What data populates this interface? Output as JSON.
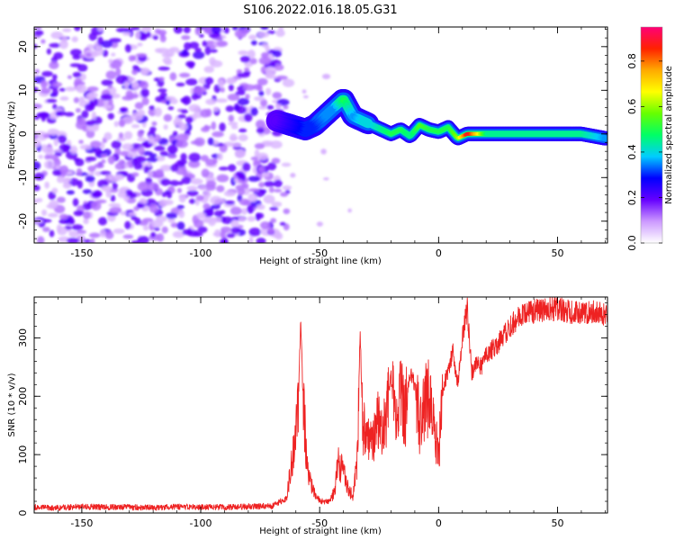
{
  "title": "S106.2022.016.18.05.G31",
  "chart_data": [
    {
      "type": "heatmap",
      "xlabel": "Height of straight line (km)",
      "ylabel": "Frequency (Hz)",
      "xlim": [
        -170,
        71
      ],
      "ylim": [
        -25,
        24.5
      ],
      "x_ticks": [
        -150,
        -100,
        -50,
        0,
        50
      ],
      "y_ticks": [
        -20,
        -10,
        0,
        10,
        20
      ],
      "colorbar": {
        "label": "Normalized spectral amplitude",
        "range": [
          0,
          0.95
        ],
        "ticks": [
          0.0,
          0.2,
          0.4,
          0.6,
          0.8
        ]
      },
      "noise_region": {
        "x_range": [
          -170,
          -68
        ],
        "y_range": [
          -25,
          24.5
        ],
        "typical_amplitude": 0.15
      },
      "signal_ridge": {
        "x": [
          -68,
          -62,
          -56,
          -52,
          -48,
          -44,
          -40,
          -36,
          -32,
          -28,
          -24,
          -20,
          -16,
          -12,
          -8,
          -4,
          0,
          4,
          8,
          12,
          16,
          20,
          30,
          40,
          50,
          60,
          70
        ],
        "frequency": [
          3,
          2,
          1,
          2,
          4,
          6,
          8,
          4,
          3,
          2,
          1,
          0,
          1,
          -0.5,
          2,
          1,
          0.5,
          1.5,
          -1,
          0,
          0,
          0,
          0,
          0,
          0,
          0,
          -1
        ],
        "amplitude": [
          0.2,
          0.25,
          0.3,
          0.3,
          0.35,
          0.35,
          0.5,
          0.35,
          0.4,
          0.4,
          0.45,
          0.5,
          0.5,
          0.45,
          0.55,
          0.5,
          0.5,
          0.5,
          0.6,
          0.9,
          0.7,
          0.45,
          0.45,
          0.45,
          0.45,
          0.45,
          0.35
        ]
      }
    },
    {
      "type": "line",
      "xlabel": "Height of straight line (km)",
      "ylabel": "SNR (10 * v/v)",
      "xlim": [
        -170,
        71
      ],
      "ylim": [
        0,
        370
      ],
      "x_ticks": [
        -150,
        -100,
        -50,
        0,
        50
      ],
      "y_ticks": [
        0,
        100,
        200,
        300
      ],
      "series": [
        {
          "color": "#ee2222",
          "x": [
            -170,
            -160,
            -150,
            -140,
            -130,
            -120,
            -110,
            -100,
            -90,
            -80,
            -70,
            -64,
            -61,
            -59,
            -58,
            -57,
            -56,
            -55,
            -54,
            -53,
            -52,
            -50,
            -48,
            -46,
            -44,
            -42,
            -40,
            -38,
            -36,
            -34,
            -33,
            -32,
            -30,
            -28,
            -26,
            -24,
            -22,
            -20,
            -18,
            -16,
            -14,
            -12,
            -10,
            -8,
            -6,
            -4,
            -2,
            0,
            2,
            4,
            6,
            8,
            10,
            12,
            14,
            16,
            18,
            20,
            25,
            30,
            35,
            40,
            45,
            50,
            55,
            60,
            65,
            70
          ],
          "y": [
            10,
            9,
            11,
            10,
            10,
            9,
            11,
            10,
            10,
            11,
            12,
            25,
            110,
            180,
            330,
            200,
            130,
            75,
            60,
            40,
            30,
            22,
            18,
            20,
            35,
            85,
            70,
            45,
            25,
            100,
            320,
            150,
            140,
            110,
            170,
            130,
            160,
            230,
            140,
            200,
            170,
            240,
            220,
            150,
            190,
            200,
            140,
            100,
            220,
            240,
            280,
            220,
            300,
            350,
            240,
            260,
            250,
            270,
            290,
            320,
            340,
            345,
            350,
            350,
            345,
            340,
            345,
            340
          ]
        }
      ]
    }
  ]
}
